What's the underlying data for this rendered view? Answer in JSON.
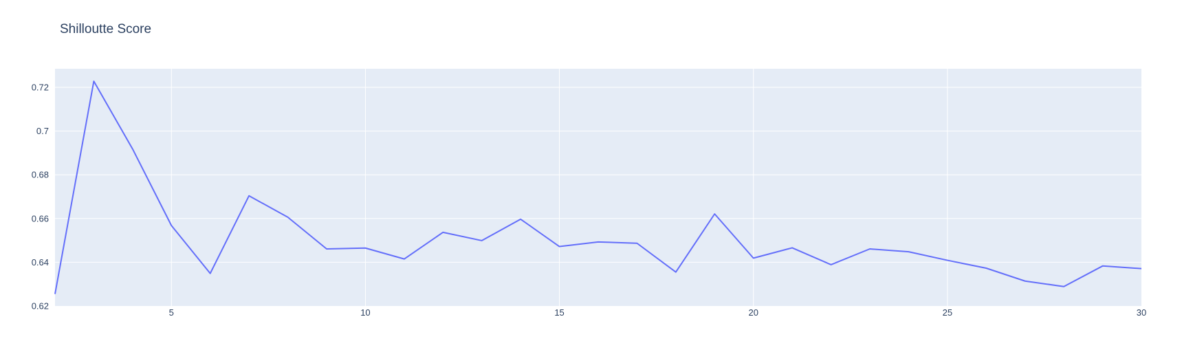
{
  "chart_data": {
    "type": "line",
    "title": "Shilloutte Score",
    "xlabel": "",
    "ylabel": "",
    "xlim": [
      2,
      30
    ],
    "ylim": [
      0.62,
      0.7285
    ],
    "xticks": [
      5,
      10,
      15,
      20,
      25,
      30
    ],
    "xtick_labels": [
      "5",
      "10",
      "15",
      "20",
      "25",
      "30"
    ],
    "yticks": [
      0.62,
      0.64,
      0.66,
      0.68,
      0.7,
      0.72
    ],
    "ytick_labels": [
      "0.62",
      "0.64",
      "0.66",
      "0.68",
      "0.7",
      "0.72"
    ],
    "grid": true,
    "colors": {
      "line": "#636efa",
      "plot_bg": "#e5ecf6",
      "grid": "#ffffff",
      "text": "#2a3f5f"
    },
    "series": [
      {
        "x": [
          2,
          3,
          4,
          5,
          6,
          7,
          8,
          9,
          10,
          11,
          12,
          13,
          14,
          15,
          16,
          17,
          18,
          19,
          20,
          21,
          22,
          23,
          24,
          25,
          26,
          27,
          28,
          29,
          30
        ],
        "values": [
          0.6255,
          0.7228,
          0.6918,
          0.6568,
          0.6349,
          0.6704,
          0.6606,
          0.6461,
          0.6465,
          0.6415,
          0.6537,
          0.6499,
          0.6597,
          0.6472,
          0.6493,
          0.6487,
          0.6355,
          0.6621,
          0.6419,
          0.6466,
          0.6389,
          0.6461,
          0.6448,
          0.6409,
          0.6373,
          0.6314,
          0.6289,
          0.6383,
          0.6371
        ]
      }
    ]
  }
}
